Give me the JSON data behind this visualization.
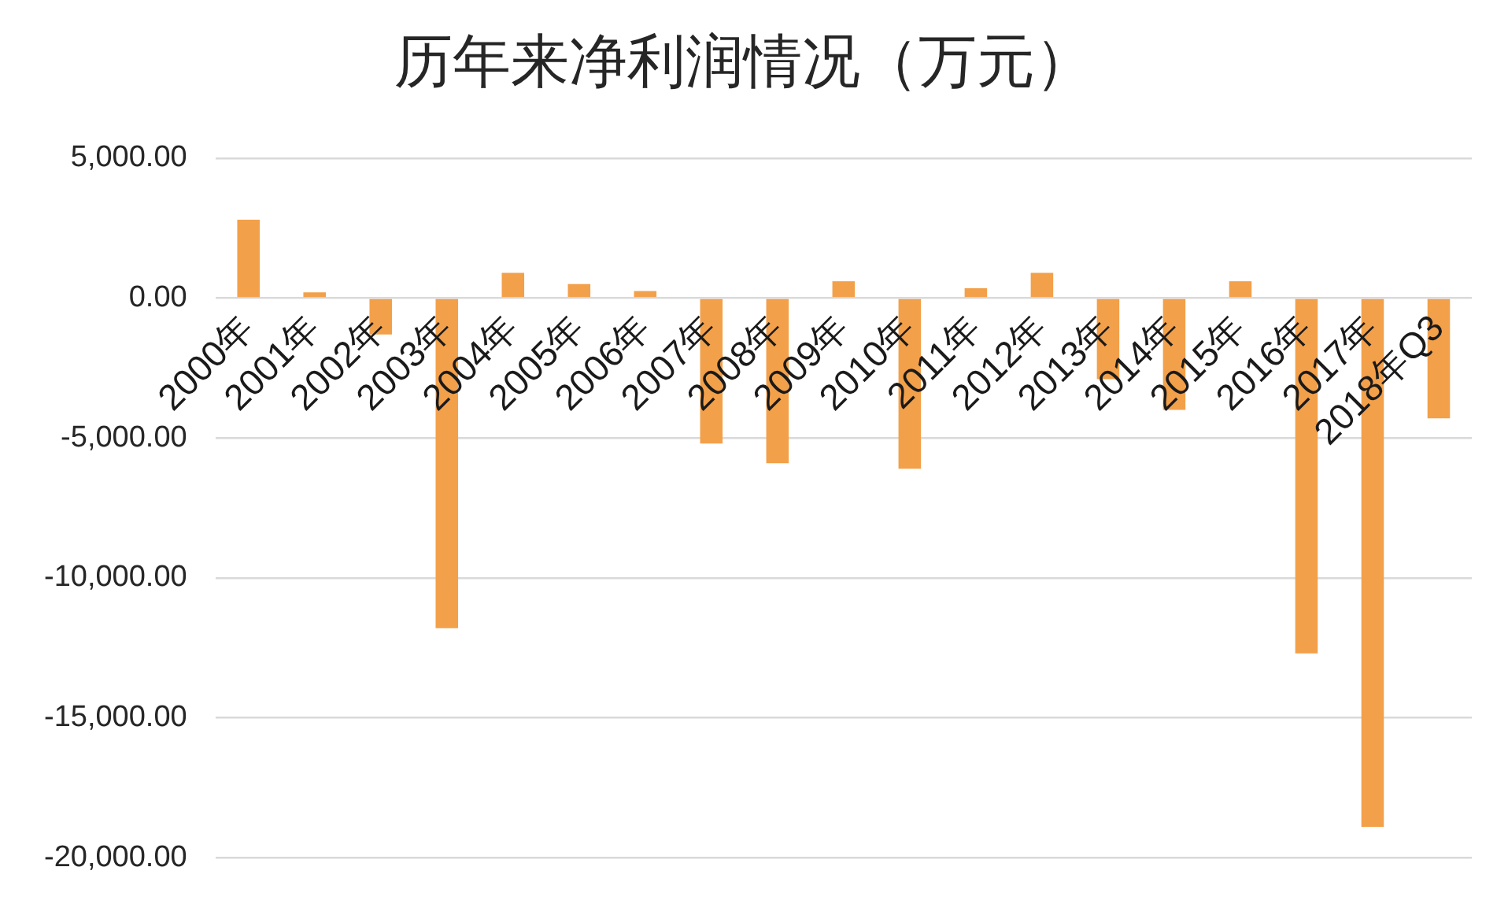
{
  "chart_data": {
    "type": "bar",
    "title": "历年来净利润情况（万元）",
    "categories": [
      "2000年",
      "2001年",
      "2002年",
      "2003年",
      "2004年",
      "2005年",
      "2006年",
      "2007年",
      "2008年",
      "2009年",
      "2010年",
      "2011年",
      "2012年",
      "2013年",
      "2014年",
      "2015年",
      "2016年",
      "2017年",
      "2018年Q3"
    ],
    "values": [
      2800,
      200,
      -1300,
      -11800,
      900,
      500,
      250,
      -5200,
      -5900,
      600,
      -6100,
      350,
      900,
      -2900,
      -4000,
      600,
      -12700,
      -18900,
      -4300
    ],
    "color": "#f3a04a",
    "ylim": [
      -20000,
      5000
    ],
    "yticks": [
      {
        "value": -20000,
        "label": "-20,000.00"
      },
      {
        "value": -15000,
        "label": "-15,000.00"
      },
      {
        "value": -10000,
        "label": "-10,000.00"
      },
      {
        "value": -5000,
        "label": "-5,000.00"
      },
      {
        "value": 0,
        "label": "0.00"
      },
      {
        "value": 5000,
        "label": "5,000.00"
      }
    ],
    "grid": "y"
  }
}
